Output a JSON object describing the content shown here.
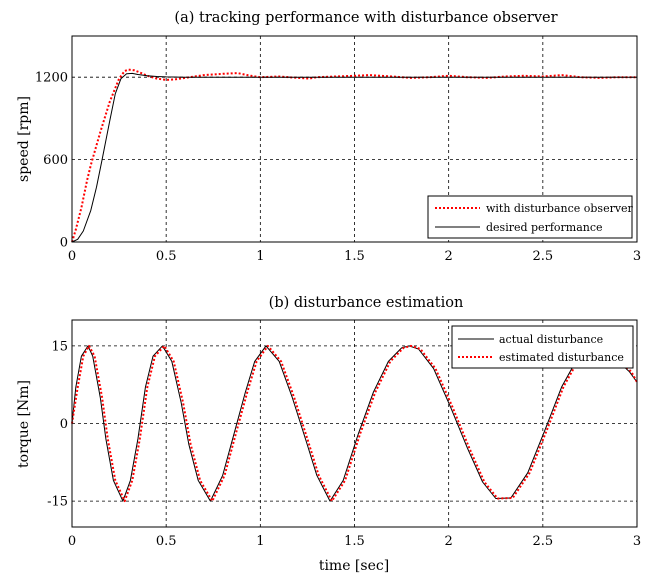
{
  "chart_data": [
    {
      "type": "line",
      "title": "(a) tracking performance with disturbance observer",
      "xlabel": "",
      "ylabel": "speed [rpm]",
      "xlim": [
        0,
        3
      ],
      "ylim": [
        0,
        1500
      ],
      "xticks": [
        0,
        0.5,
        1,
        1.5,
        2,
        2.5,
        3
      ],
      "xtick_labels": [
        "0",
        "0.5",
        "1",
        "1.5",
        "2",
        "2.5",
        "3"
      ],
      "yticks": [
        0,
        600,
        1200
      ],
      "ytick_labels": [
        "0",
        "600",
        "1200"
      ],
      "grid": true,
      "legend_position": "bottom-right",
      "series": [
        {
          "name": "with disturbance observer",
          "color": "#ff0000",
          "style": "dotted",
          "x": [
            0,
            0.02,
            0.05,
            0.08,
            0.1,
            0.15,
            0.2,
            0.25,
            0.28,
            0.3,
            0.33,
            0.36,
            0.4,
            0.45,
            0.5,
            0.55,
            0.6,
            0.7,
            0.8,
            0.88,
            0.95,
            1.0,
            1.1,
            1.2,
            1.26,
            1.3,
            1.4,
            1.5,
            1.58,
            1.7,
            1.8,
            1.9,
            2.0,
            2.1,
            2.2,
            2.3,
            2.4,
            2.5,
            2.6,
            2.7,
            2.8,
            2.9,
            3.0
          ],
          "y": [
            0,
            90,
            250,
            450,
            560,
            800,
            1020,
            1190,
            1245,
            1255,
            1250,
            1235,
            1210,
            1190,
            1180,
            1185,
            1195,
            1215,
            1225,
            1230,
            1210,
            1200,
            1205,
            1195,
            1190,
            1200,
            1205,
            1210,
            1215,
            1205,
            1195,
            1200,
            1210,
            1200,
            1195,
            1205,
            1210,
            1205,
            1215,
            1200,
            1195,
            1200,
            1200
          ]
        },
        {
          "name": "desired performance",
          "color": "#000000",
          "style": "solid",
          "x": [
            0,
            0.03,
            0.06,
            0.1,
            0.13,
            0.16,
            0.2,
            0.23,
            0.26,
            0.29,
            0.32,
            0.35,
            0.4,
            0.45,
            0.5,
            0.6,
            0.8,
            1.0,
            1.5,
            2.0,
            2.5,
            3.0
          ],
          "y": [
            0,
            20,
            80,
            230,
            400,
            600,
            880,
            1080,
            1190,
            1225,
            1228,
            1220,
            1210,
            1205,
            1202,
            1200,
            1200,
            1200,
            1200,
            1200,
            1200,
            1200
          ]
        }
      ]
    },
    {
      "type": "line",
      "title": "(b) disturbance estimation",
      "xlabel": "time [sec]",
      "ylabel": "torque [Nm]",
      "xlim": [
        0,
        3
      ],
      "ylim": [
        -20,
        20
      ],
      "xticks": [
        0,
        0.5,
        1,
        1.5,
        2,
        2.5,
        3
      ],
      "xtick_labels": [
        "0",
        "0.5",
        "1",
        "1.5",
        "2",
        "2.5",
        "3"
      ],
      "yticks": [
        -15,
        0,
        15
      ],
      "ytick_labels": [
        "-15",
        "0",
        "15"
      ],
      "grid": true,
      "legend_position": "top-right",
      "series": [
        {
          "name": "actual disturbance",
          "color": "#000000",
          "style": "solid",
          "x": [
            0,
            0.02,
            0.05,
            0.085,
            0.11,
            0.15,
            0.18,
            0.22,
            0.27,
            0.31,
            0.35,
            0.39,
            0.43,
            0.48,
            0.53,
            0.58,
            0.62,
            0.67,
            0.735,
            0.8,
            0.86,
            0.92,
            0.97,
            1.03,
            1.1,
            1.17,
            1.24,
            1.3,
            1.37,
            1.44,
            1.52,
            1.6,
            1.68,
            1.75,
            1.79,
            1.84,
            1.92,
            2.01,
            2.1,
            2.18,
            2.25,
            2.33,
            2.42,
            2.51,
            2.6,
            2.67,
            2.7,
            2.77,
            2.83,
            2.9,
            2.96,
            3.0
          ],
          "y": [
            0,
            7,
            13,
            15,
            13,
            5,
            -3,
            -11,
            -15,
            -11,
            -3,
            7,
            13,
            15,
            12,
            4,
            -4,
            -11,
            -15,
            -10,
            -2,
            6,
            12,
            15,
            12,
            5,
            -3,
            -10,
            -15,
            -11,
            -2,
            6,
            12,
            14.6,
            15,
            14.4,
            10.6,
            3.2,
            -4.8,
            -11.3,
            -14.5,
            -14.4,
            -9.5,
            -1.4,
            7.1,
            11.7,
            12.5,
            13,
            13,
            12,
            10,
            8
          ]
        },
        {
          "name": "estimated disturbance",
          "color": "#ff0000",
          "style": "dotted",
          "x": [
            0,
            0.03,
            0.06,
            0.09,
            0.12,
            0.16,
            0.19,
            0.23,
            0.28,
            0.32,
            0.36,
            0.4,
            0.44,
            0.49,
            0.54,
            0.59,
            0.63,
            0.68,
            0.745,
            0.81,
            0.87,
            0.93,
            0.98,
            1.04,
            1.11,
            1.18,
            1.25,
            1.31,
            1.38,
            1.45,
            1.53,
            1.61,
            1.69,
            1.76,
            1.8,
            1.85,
            1.93,
            2.02,
            2.11,
            2.19,
            2.26,
            2.34,
            2.43,
            2.52,
            2.61,
            2.68,
            2.71,
            2.78,
            2.84,
            2.91,
            2.97,
            3.0
          ],
          "y": [
            0,
            7,
            13,
            15,
            13,
            5,
            -3,
            -11,
            -15,
            -11,
            -3,
            7,
            13,
            15,
            12,
            4,
            -4,
            -11,
            -15,
            -10,
            -2,
            6,
            12,
            15,
            12,
            5,
            -3,
            -10,
            -15,
            -11,
            -2,
            6,
            12,
            14.6,
            15,
            14.4,
            10.6,
            3.2,
            -4.8,
            -11.3,
            -14.5,
            -14.4,
            -9.5,
            -1.4,
            7.1,
            11.7,
            12.5,
            13,
            13,
            12,
            10,
            8
          ]
        }
      ]
    }
  ]
}
